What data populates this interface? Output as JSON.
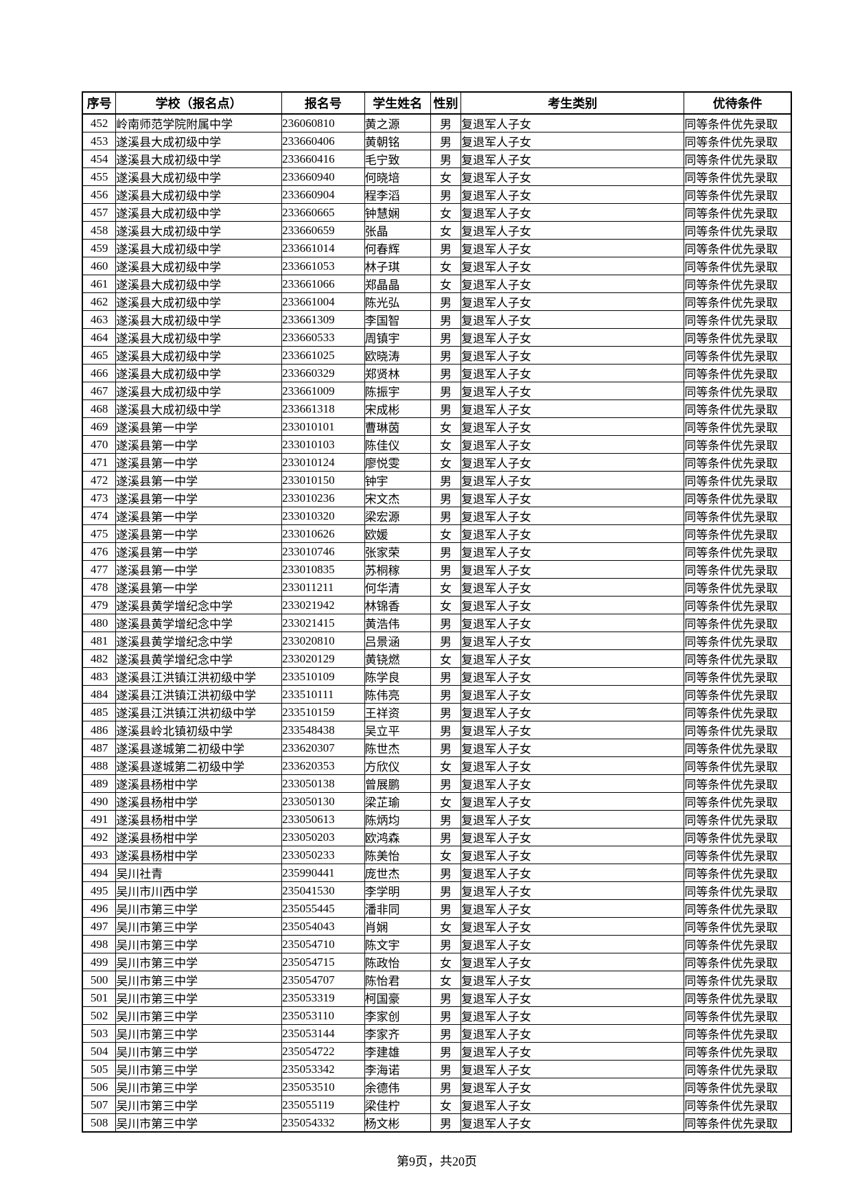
{
  "table": {
    "headers": [
      "序号",
      "学校（报名点）",
      "报名号",
      "学生姓名",
      "性别",
      "考生类别",
      "优待条件"
    ],
    "column_keys": [
      "seq",
      "school",
      "reg_no",
      "name",
      "gender",
      "category",
      "privilege"
    ],
    "candidate_category_all_rows": "复退军人子女",
    "privilege_all_rows": "同等条件优先录取",
    "rows": [
      [
        "452",
        "岭南师范学院附属中学",
        "236060810",
        "黄之源",
        "男"
      ],
      [
        "453",
        "遂溪县大成初级中学",
        "233660406",
        "黄朝铭",
        "男"
      ],
      [
        "454",
        "遂溪县大成初级中学",
        "233660416",
        "毛宁致",
        "男"
      ],
      [
        "455",
        "遂溪县大成初级中学",
        "233660940",
        "何晓培",
        "女"
      ],
      [
        "456",
        "遂溪县大成初级中学",
        "233660904",
        "程李滔",
        "男"
      ],
      [
        "457",
        "遂溪县大成初级中学",
        "233660665",
        "钟慧娴",
        "女"
      ],
      [
        "458",
        "遂溪县大成初级中学",
        "233660659",
        "张晶",
        "女"
      ],
      [
        "459",
        "遂溪县大成初级中学",
        "233661014",
        "何春辉",
        "男"
      ],
      [
        "460",
        "遂溪县大成初级中学",
        "233661053",
        "林子琪",
        "女"
      ],
      [
        "461",
        "遂溪县大成初级中学",
        "233661066",
        "郑晶晶",
        "女"
      ],
      [
        "462",
        "遂溪县大成初级中学",
        "233661004",
        "陈光弘",
        "男"
      ],
      [
        "463",
        "遂溪县大成初级中学",
        "233661309",
        "李国智",
        "男"
      ],
      [
        "464",
        "遂溪县大成初级中学",
        "233660533",
        "周镇宇",
        "男"
      ],
      [
        "465",
        "遂溪县大成初级中学",
        "233661025",
        "欧晓涛",
        "男"
      ],
      [
        "466",
        "遂溪县大成初级中学",
        "233660329",
        "郑贤林",
        "男"
      ],
      [
        "467",
        "遂溪县大成初级中学",
        "233661009",
        "陈振宇",
        "男"
      ],
      [
        "468",
        "遂溪县大成初级中学",
        "233661318",
        "宋成彬",
        "男"
      ],
      [
        "469",
        "遂溪县第一中学",
        "233010101",
        "曹琳茵",
        "女"
      ],
      [
        "470",
        "遂溪县第一中学",
        "233010103",
        "陈佳仪",
        "女"
      ],
      [
        "471",
        "遂溪县第一中学",
        "233010124",
        "廖悦雯",
        "女"
      ],
      [
        "472",
        "遂溪县第一中学",
        "233010150",
        "钟宇",
        "男"
      ],
      [
        "473",
        "遂溪县第一中学",
        "233010236",
        "宋文杰",
        "男"
      ],
      [
        "474",
        "遂溪县第一中学",
        "233010320",
        "梁宏源",
        "男"
      ],
      [
        "475",
        "遂溪县第一中学",
        "233010626",
        "欧媛",
        "女"
      ],
      [
        "476",
        "遂溪县第一中学",
        "233010746",
        "张家荣",
        "男"
      ],
      [
        "477",
        "遂溪县第一中学",
        "233010835",
        "苏桐稼",
        "男"
      ],
      [
        "478",
        "遂溪县第一中学",
        "233011211",
        "何华清",
        "女"
      ],
      [
        "479",
        "遂溪县黄学增纪念中学",
        "233021942",
        "林锦香",
        "女"
      ],
      [
        "480",
        "遂溪县黄学增纪念中学",
        "233021415",
        "黄浩伟",
        "男"
      ],
      [
        "481",
        "遂溪县黄学增纪念中学",
        "233020810",
        "吕景涵",
        "男"
      ],
      [
        "482",
        "遂溪县黄学增纪念中学",
        "233020129",
        "黄铙燃",
        "女"
      ],
      [
        "483",
        "遂溪县江洪镇江洪初级中学",
        "233510109",
        "陈学良",
        "男"
      ],
      [
        "484",
        "遂溪县江洪镇江洪初级中学",
        "233510111",
        "陈伟亮",
        "男"
      ],
      [
        "485",
        "遂溪县江洪镇江洪初级中学",
        "233510159",
        "王祥资",
        "男"
      ],
      [
        "486",
        "遂溪县岭北镇初级中学",
        "233548438",
        "吴立平",
        "男"
      ],
      [
        "487",
        "遂溪县遂城第二初级中学",
        "233620307",
        "陈世杰",
        "男"
      ],
      [
        "488",
        "遂溪县遂城第二初级中学",
        "233620353",
        "方欣仪",
        "女"
      ],
      [
        "489",
        "遂溪县杨柑中学",
        "233050138",
        "曾展鹏",
        "男"
      ],
      [
        "490",
        "遂溪县杨柑中学",
        "233050130",
        "梁芷瑜",
        "女"
      ],
      [
        "491",
        "遂溪县杨柑中学",
        "233050613",
        "陈炳均",
        "男"
      ],
      [
        "492",
        "遂溪县杨柑中学",
        "233050203",
        "欧鸿森",
        "男"
      ],
      [
        "493",
        "遂溪县杨柑中学",
        "233050233",
        "陈美怡",
        "女"
      ],
      [
        "494",
        "吴川社青",
        "235990441",
        "庞世杰",
        "男"
      ],
      [
        "495",
        "吴川市川西中学",
        "235041530",
        "李学明",
        "男"
      ],
      [
        "496",
        "吴川市第三中学",
        "235055445",
        "潘非同",
        "男"
      ],
      [
        "497",
        "吴川市第三中学",
        "235054043",
        "肖娴",
        "女"
      ],
      [
        "498",
        "吴川市第三中学",
        "235054710",
        "陈文宇",
        "男"
      ],
      [
        "499",
        "吴川市第三中学",
        "235054715",
        "陈政怡",
        "女"
      ],
      [
        "500",
        "吴川市第三中学",
        "235054707",
        "陈怡君",
        "女"
      ],
      [
        "501",
        "吴川市第三中学",
        "235053319",
        "柯国豪",
        "男"
      ],
      [
        "502",
        "吴川市第三中学",
        "235053110",
        "李家创",
        "男"
      ],
      [
        "503",
        "吴川市第三中学",
        "235053144",
        "李家齐",
        "男"
      ],
      [
        "504",
        "吴川市第三中学",
        "235054722",
        "李建雄",
        "男"
      ],
      [
        "505",
        "吴川市第三中学",
        "235053342",
        "李海诺",
        "男"
      ],
      [
        "506",
        "吴川市第三中学",
        "235053510",
        "余德伟",
        "男"
      ],
      [
        "507",
        "吴川市第三中学",
        "235055119",
        "梁佳柠",
        "女"
      ],
      [
        "508",
        "吴川市第三中学",
        "235054332",
        "杨文彬",
        "男"
      ]
    ]
  },
  "footer": {
    "page_info": "第9页，共20页"
  },
  "colors": {
    "page_background": "#ffffff",
    "grid_line": "#000000",
    "text": "#000000"
  }
}
